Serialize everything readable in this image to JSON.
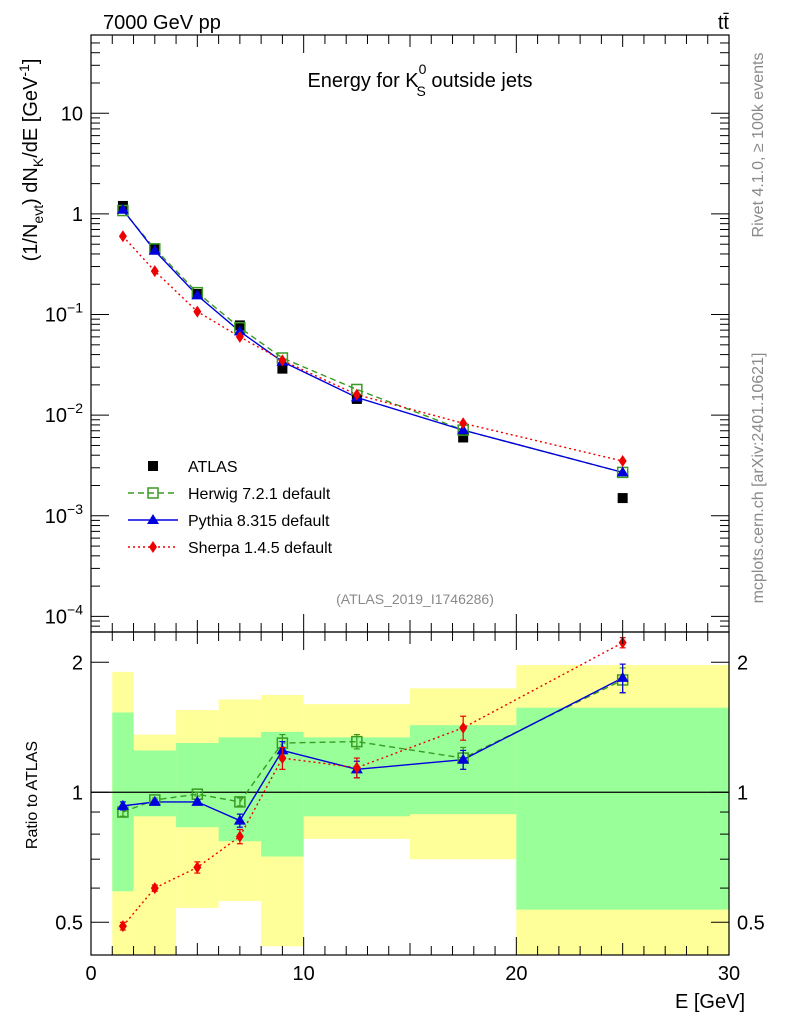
{
  "header": {
    "left": "7000 GeV pp",
    "right": "tt̄"
  },
  "side_text": {
    "top": "Rivet 4.1.0, ≥ 100k events",
    "bottom": "mcplots.cern.ch [arXiv:2401.10621]"
  },
  "colors": {
    "data": "#000000",
    "herwig": "#3a9a22",
    "pythia": "#0000dd",
    "sherpa": "#ee0000",
    "band_outer": "#ffff99",
    "band_inner": "#99ff99"
  },
  "chart_data": [
    {
      "type": "line",
      "yscale": "log",
      "title": "Energy for K⁰S outside jets",
      "title_parts": {
        "pre": "Energy for K",
        "sup": "0",
        "sub": "S",
        "post": " outside jets"
      },
      "ylabel": "(1/N_evt) dN_K/dE [GeV^-1]",
      "ylabel_parts": {
        "a": "(1/N",
        "a_sub": "evt",
        "b": ") dN",
        "b_sub": "K",
        "c": "/dE [GeV",
        "c_sup": "-1",
        "d": "]"
      },
      "xlim": [
        0,
        30
      ],
      "ylim": [
        7e-05,
        60
      ],
      "yticks": [
        {
          "value": 10,
          "label": "10"
        },
        {
          "value": 1,
          "label": "1"
        },
        {
          "value": 0.1,
          "label": "10",
          "exp": "−1"
        },
        {
          "value": 0.01,
          "label": "10",
          "exp": "−2"
        },
        {
          "value": 0.001,
          "label": "10",
          "exp": "−3"
        },
        {
          "value": 0.0001,
          "label": "10",
          "exp": "−4"
        }
      ],
      "x": [
        1.5,
        3,
        5,
        7,
        9,
        12.5,
        17.5,
        25
      ],
      "series": [
        {
          "name": "ATLAS",
          "key": "data",
          "marker": "square",
          "line": "none",
          "values": [
            1.2,
            0.45,
            0.16,
            0.078,
            0.029,
            0.0145,
            0.006,
            0.0015
          ]
        },
        {
          "name": "Herwig 7.2.1 default",
          "key": "herwig",
          "marker": "open-square",
          "line": "dashed",
          "values": [
            1.08,
            0.45,
            0.165,
            0.074,
            0.037,
            0.018,
            0.0071,
            0.0027
          ]
        },
        {
          "name": "Pythia 8.315 default",
          "key": "pythia",
          "marker": "triangle",
          "line": "solid",
          "values": [
            1.1,
            0.43,
            0.155,
            0.068,
            0.034,
            0.015,
            0.0071,
            0.0027
          ]
        },
        {
          "name": "Sherpa 1.4.5 default",
          "key": "sherpa",
          "marker": "diamond",
          "line": "dotted",
          "values": [
            0.6,
            0.27,
            0.107,
            0.06,
            0.035,
            0.016,
            0.0083,
            0.0035
          ]
        }
      ],
      "legend_position": "lower-left",
      "annotation": "(ATLAS_2019_I1746286)"
    },
    {
      "type": "line",
      "yscale": "log",
      "ylabel": "Ratio to ATLAS",
      "xlabel": "E [GeV]",
      "xlim": [
        0,
        30
      ],
      "ylim": [
        0.42,
        2.35
      ],
      "xticks": [
        0,
        10,
        20,
        30
      ],
      "yticks": [
        0.5,
        1,
        2
      ],
      "reference_line": 1,
      "x": [
        1.5,
        3,
        5,
        7,
        9,
        12.5,
        17.5,
        25
      ],
      "bands": {
        "edges": [
          1,
          2,
          4,
          6,
          8,
          10,
          15,
          20,
          30
        ],
        "outer_low": [
          0.38,
          0.38,
          0.54,
          0.56,
          0.44,
          0.78,
          0.7,
          0.4
        ],
        "outer_high": [
          1.9,
          1.36,
          1.55,
          1.64,
          1.68,
          1.6,
          1.74,
          1.97
        ],
        "inner_low": [
          0.59,
          0.88,
          0.83,
          0.77,
          0.71,
          0.88,
          0.89,
          0.535
        ],
        "inner_high": [
          1.53,
          1.25,
          1.3,
          1.34,
          1.38,
          1.34,
          1.43,
          1.57
        ]
      },
      "series": [
        {
          "name": "Herwig 7.2.1 default",
          "key": "herwig",
          "marker": "open-square",
          "line": "dashed",
          "values": [
            0.9,
            0.96,
            0.99,
            0.95,
            1.3,
            1.31,
            1.2,
            1.82
          ],
          "errors": [
            0.02,
            0.01,
            0.01,
            0.02,
            0.06,
            0.05,
            0.07,
            0.12
          ]
        },
        {
          "name": "Pythia 8.315 default",
          "key": "pythia",
          "marker": "triangle",
          "line": "solid",
          "values": [
            0.93,
            0.95,
            0.95,
            0.86,
            1.25,
            1.13,
            1.19,
            1.84
          ],
          "errors": [
            0.02,
            0.01,
            0.01,
            0.03,
            0.06,
            0.05,
            0.06,
            0.14
          ]
        },
        {
          "name": "Sherpa 1.4.5 default",
          "key": "sherpa",
          "marker": "diamond",
          "line": "dotted",
          "values": [
            0.49,
            0.6,
            0.67,
            0.79,
            1.2,
            1.14,
            1.41,
            2.22
          ],
          "errors": [
            0.01,
            0.01,
            0.02,
            0.03,
            0.07,
            0.06,
            0.09,
            0.06
          ]
        }
      ]
    }
  ]
}
